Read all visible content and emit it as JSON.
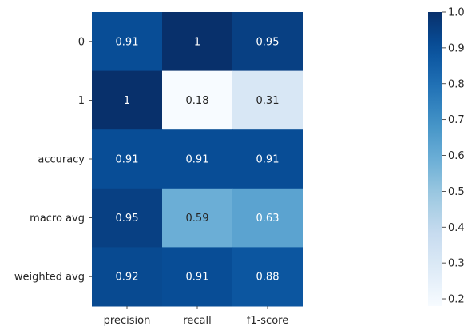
{
  "chart_data": {
    "type": "heatmap",
    "title": "",
    "xlabel": "",
    "ylabel": "",
    "columns": [
      "precision",
      "recall",
      "f1-score"
    ],
    "rows": [
      "0",
      "1",
      "accuracy",
      "macro avg",
      "weighted avg"
    ],
    "values": [
      [
        0.91,
        1.0,
        0.95
      ],
      [
        1.0,
        0.18,
        0.31
      ],
      [
        0.91,
        0.91,
        0.91
      ],
      [
        0.95,
        0.59,
        0.63
      ],
      [
        0.92,
        0.91,
        0.88
      ]
    ],
    "cell_labels": [
      [
        "0.91",
        "1",
        "0.95"
      ],
      [
        "1",
        "0.18",
        "0.31"
      ],
      [
        "0.91",
        "0.91",
        "0.91"
      ],
      [
        "0.95",
        "0.59",
        "0.63"
      ],
      [
        "0.92",
        "0.91",
        "0.88"
      ]
    ],
    "colormap": "Blues",
    "colorbar": {
      "min": 0.18,
      "max": 1.0,
      "ticks": [
        "0.2",
        "0.3",
        "0.4",
        "0.5",
        "0.6",
        "0.7",
        "0.8",
        "0.9",
        "1.0"
      ],
      "tick_values": [
        0.2,
        0.3,
        0.4,
        0.5,
        0.6,
        0.7,
        0.8,
        0.9,
        1.0
      ]
    },
    "annotated": true,
    "grid": false,
    "legend": "colorbar-right"
  }
}
